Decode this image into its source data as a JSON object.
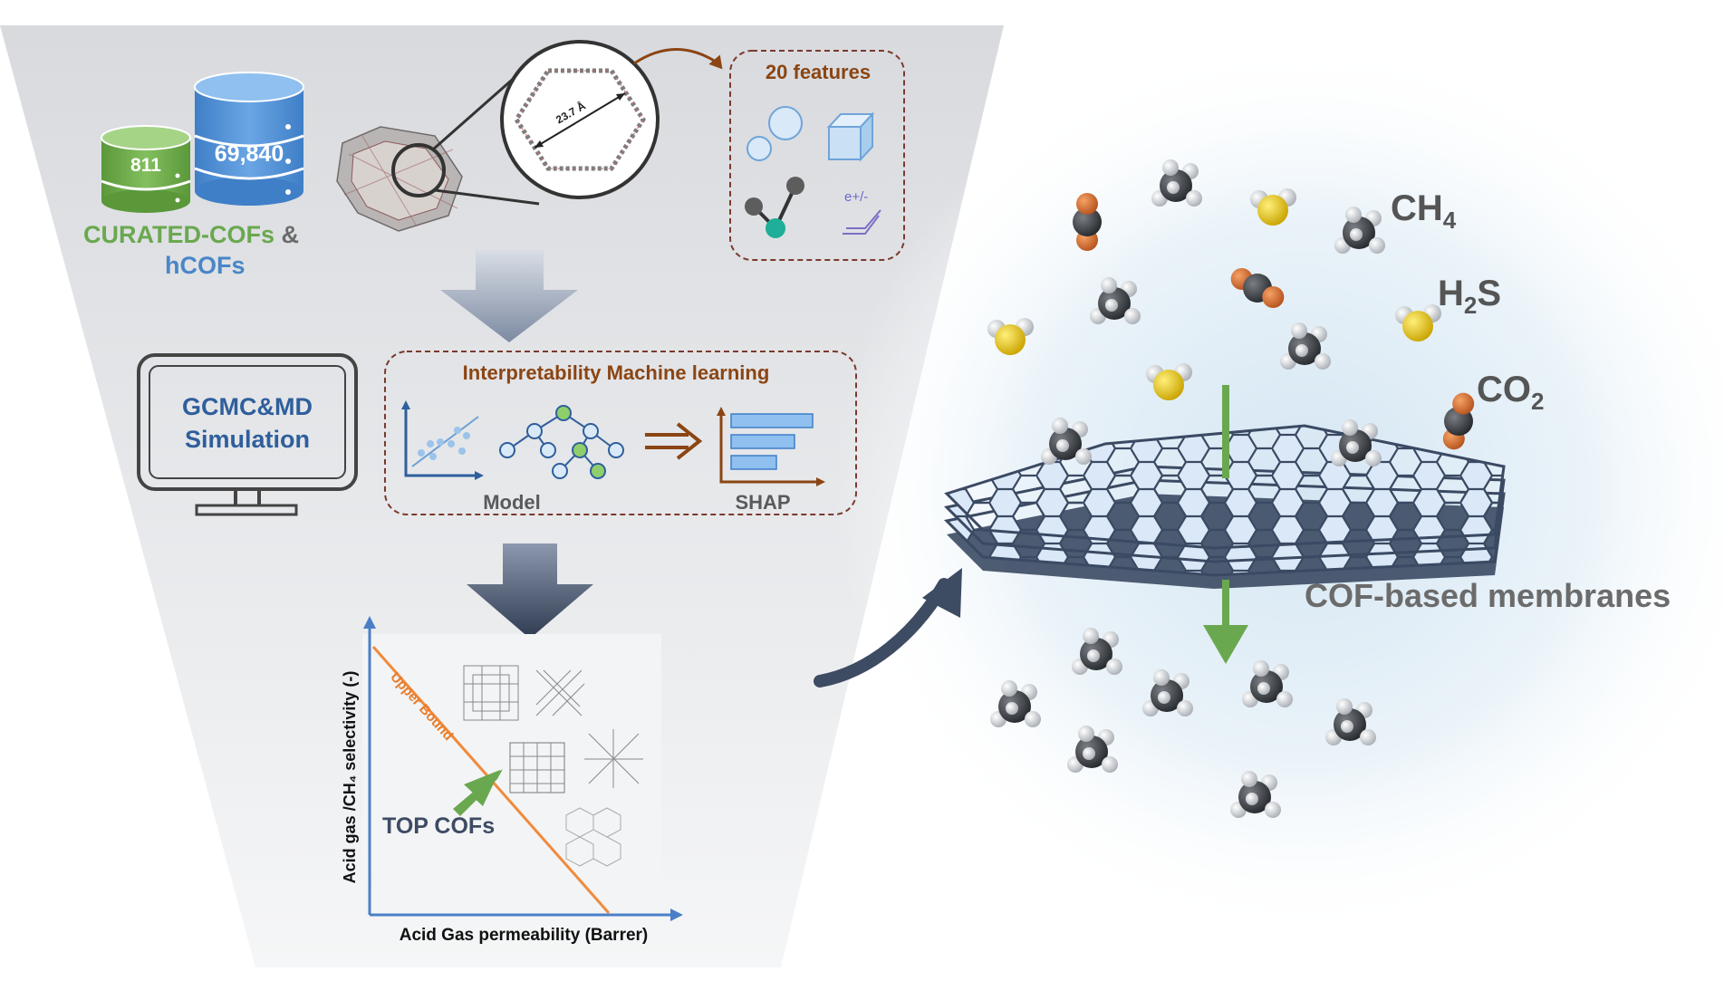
{
  "databases": {
    "small_value": "811",
    "large_value": "69,840"
  },
  "source": {
    "line1_green": "CURATED-COFs",
    "line1_amp": " &",
    "line2_blue": "hCOFs"
  },
  "pore": {
    "measure": "23.7 Å"
  },
  "features": {
    "title": "20 features",
    "charge_symbol": "e+/-"
  },
  "simulation": {
    "line1": "GCMC&MD",
    "line2": "Simulation"
  },
  "ml": {
    "title": "Interpretability Machine learning",
    "model_label": "Model",
    "shap_label": "SHAP"
  },
  "plot": {
    "ylabel": "Acid gas /CH₄ selectivity (-)",
    "xlabel": "Acid Gas permeability (Barrer)",
    "upper_bound": "Upper Bound",
    "top": "TOP COFs"
  },
  "gases": {
    "ch4": "CH",
    "ch4_sub": "4",
    "h2s_a": "H",
    "h2s_sub": "2",
    "h2s_b": "S",
    "co2": "CO",
    "co2_sub": "2"
  },
  "membrane": {
    "label": "COF-based membranes"
  },
  "colors": {
    "green": "#6aa84f",
    "blue": "#4a86c8",
    "brown": "#8b4513",
    "funnel": "#e3e5e8",
    "arrow": "#3d4b63"
  }
}
